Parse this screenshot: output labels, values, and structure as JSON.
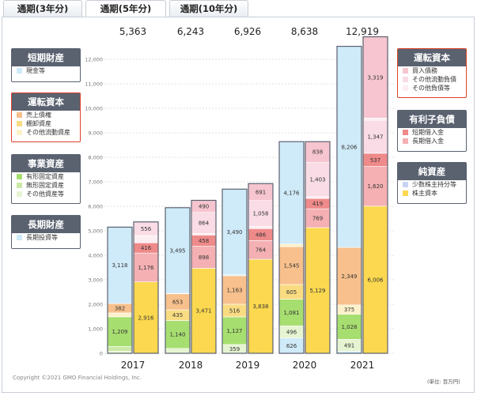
{
  "tabs": [
    {
      "label": "通期(3年分)",
      "active": false
    },
    {
      "label": "通期(5年分)",
      "active": true
    },
    {
      "label": "通期(10年分)",
      "active": false
    }
  ],
  "legend_left": [
    {
      "title": "短期財産",
      "border": "#5a6270",
      "items": [
        {
          "label": "現金等",
          "color": "#cfeaf8"
        }
      ]
    },
    {
      "title": "運転資本",
      "border": "#e0412a",
      "items": [
        {
          "label": "売上債権",
          "color": "#f7c08c"
        },
        {
          "label": "棚卸資産",
          "color": "#f9dc82"
        },
        {
          "label": "その他流動資産",
          "color": "#fdf1c9"
        }
      ]
    },
    {
      "title": "事業資産",
      "border": "#5a6270",
      "items": [
        {
          "label": "有形固定資産",
          "color": "#a7de70"
        },
        {
          "label": "無形固定資産",
          "color": "#cbe9a6"
        },
        {
          "label": "その他資産等",
          "color": "#e6f4d2"
        }
      ]
    },
    {
      "title": "長期財産",
      "border": "#5a6270",
      "items": [
        {
          "label": "長期投資等",
          "color": "#cfeaf8"
        }
      ]
    }
  ],
  "legend_right": [
    {
      "title": "運転資本",
      "border": "#e0412a",
      "items": [
        {
          "label": "買入債務",
          "color": "#f6c5cf"
        },
        {
          "label": "その他流動負債",
          "color": "#f9dce5"
        },
        {
          "label": "その他負債等",
          "color": "#fdeef2"
        }
      ]
    },
    {
      "title": "有利子負債",
      "border": "#5a6270",
      "items": [
        {
          "label": "短期借入金",
          "color": "#ef8a8a"
        },
        {
          "label": "長期借入金",
          "color": "#f4b0b3"
        }
      ]
    },
    {
      "title": "純資産",
      "border": "#5a6270",
      "items": [
        {
          "label": "少数株主持分等",
          "color": "#c9d3f3"
        },
        {
          "label": "株主資本",
          "color": "#fbd84f"
        }
      ]
    }
  ],
  "footer": {
    "copyright": "Copyright ©2021 GMO Financial Holdings, Inc.",
    "unit": "(単位: 百万円)"
  },
  "chart_data": {
    "type": "bar",
    "categories": [
      "2017",
      "2018",
      "2019",
      "2020",
      "2021"
    ],
    "totals": [
      "5,363",
      "6,243",
      "6,926",
      "8,638",
      "12,919"
    ],
    "ylim": [
      0,
      12000
    ],
    "yticks": [
      "0",
      "1,000",
      "2,000",
      "3,000",
      "4,000",
      "5,000",
      "6,000",
      "7,000",
      "8,000",
      "9,000",
      "10,000",
      "11,000",
      "12,000"
    ],
    "grid": true,
    "assets": [
      [
        {
          "name": "その他資産等",
          "value": 80,
          "label": "",
          "color": "#e6f4d2"
        },
        {
          "name": "無形固定資産",
          "value": 200,
          "label": "",
          "color": "#cbe9a6"
        },
        {
          "name": "有形固定資産",
          "value": 1209,
          "label": "1,209",
          "color": "#a7de70"
        },
        {
          "name": "その他流動資産",
          "value": 160,
          "label": "",
          "color": "#fdf1c9"
        },
        {
          "name": "売上債権",
          "value": 382,
          "label": "382",
          "color": "#f7c08c"
        },
        {
          "name": "現金等",
          "value": 3118,
          "label": "3,118",
          "color": "#cfeaf8"
        }
      ],
      [
        {
          "name": "その他資産等",
          "value": 200,
          "label": "",
          "color": "#e6f4d2"
        },
        {
          "name": "有形固定資産",
          "value": 1140,
          "label": "1,140",
          "color": "#a7de70"
        },
        {
          "name": "棚卸資産",
          "value": 435,
          "label": "435",
          "color": "#f9dc82"
        },
        {
          "name": "売上債権",
          "value": 653,
          "label": "653",
          "color": "#f7c08c"
        },
        {
          "name": "長期投資等",
          "value": 20,
          "label": "",
          "color": "#cfeaf8"
        },
        {
          "name": "現金等",
          "value": 3495,
          "label": "3,495",
          "color": "#cfeaf8"
        }
      ],
      [
        {
          "name": "その他資産等",
          "value": 359,
          "label": "359",
          "color": "#e6f4d2"
        },
        {
          "name": "有形固定資産",
          "value": 1127,
          "label": "1,127",
          "color": "#a7de70"
        },
        {
          "name": "棚卸資産",
          "value": 516,
          "label": "516",
          "color": "#f9dc82"
        },
        {
          "name": "売上債権",
          "value": 1163,
          "label": "1,163",
          "color": "#f7c08c"
        },
        {
          "name": "長期投資等",
          "value": 45,
          "label": "",
          "color": "#cfeaf8"
        },
        {
          "name": "現金等",
          "value": 3490,
          "label": "3,490",
          "color": "#cfeaf8"
        }
      ],
      [
        {
          "name": "長期投資等",
          "value": 626,
          "label": "626",
          "color": "#cfeaf8"
        },
        {
          "name": "その他資産等",
          "value": 496,
          "label": "496",
          "color": "#e6f4d2"
        },
        {
          "name": "有形固定資産",
          "value": 1081,
          "label": "1,081",
          "color": "#a7de70"
        },
        {
          "name": "棚卸資産",
          "value": 605,
          "label": "605",
          "color": "#f9dc82"
        },
        {
          "name": "売上債権",
          "value": 1545,
          "label": "1,545",
          "color": "#f7c08c"
        },
        {
          "name": "その他流動資産",
          "value": 109,
          "label": "",
          "color": "#fdf1c9"
        },
        {
          "name": "現金等",
          "value": 4176,
          "label": "4,176",
          "color": "#cfeaf8"
        }
      ],
      [
        {
          "name": "長期投資等",
          "value": 80,
          "label": "",
          "color": "#cfeaf8"
        },
        {
          "name": "その他資産等",
          "value": 491,
          "label": "491",
          "color": "#e6f4d2"
        },
        {
          "name": "有形固定資産",
          "value": 1028,
          "label": "1,028",
          "color": "#a7de70"
        },
        {
          "name": "その他流動資産",
          "value": 375,
          "label": "375",
          "color": "#fdf1c9"
        },
        {
          "name": "売上債権",
          "value": 2349,
          "label": "2,349",
          "color": "#f7c08c"
        },
        {
          "name": "現金等",
          "value": 8206,
          "label": "8,206",
          "color": "#cfeaf8"
        }
      ]
    ],
    "liabilities": [
      [
        {
          "name": "株主資本",
          "value": 2916,
          "label": "2,916",
          "color": "#fbd84f"
        },
        {
          "name": "長期借入金",
          "value": 1176,
          "label": "1,176",
          "color": "#f4b0b3"
        },
        {
          "name": "短期借入金",
          "value": 416,
          "label": "416",
          "color": "#ef8a8a"
        },
        {
          "name": "その他負債等",
          "value": 299,
          "label": "",
          "color": "#fdeef2"
        },
        {
          "name": "その他流動負債",
          "value": 556,
          "label": "556",
          "color": "#f9dce5"
        }
      ],
      [
        {
          "name": "株主資本",
          "value": 3471,
          "label": "3,471",
          "color": "#fbd84f"
        },
        {
          "name": "長期借入金",
          "value": 898,
          "label": "898",
          "color": "#f4b0b3"
        },
        {
          "name": "短期借入金",
          "value": 458,
          "label": "458",
          "color": "#ef8a8a"
        },
        {
          "name": "その他負債等",
          "value": 62,
          "label": "",
          "color": "#fdeef2"
        },
        {
          "name": "その他流動負債",
          "value": 864,
          "label": "864",
          "color": "#f9dce5"
        },
        {
          "name": "買入債務",
          "value": 490,
          "label": "490",
          "color": "#f6c5cf"
        }
      ],
      [
        {
          "name": "株主資本",
          "value": 3838,
          "label": "3,838",
          "color": "#fbd84f"
        },
        {
          "name": "長期借入金",
          "value": 764,
          "label": "764",
          "color": "#f4b0b3"
        },
        {
          "name": "短期借入金",
          "value": 486,
          "label": "486",
          "color": "#ef8a8a"
        },
        {
          "name": "その他負債等",
          "value": 89,
          "label": "",
          "color": "#fdeef2"
        },
        {
          "name": "その他流動負債",
          "value": 1058,
          "label": "1,058",
          "color": "#f9dce5"
        },
        {
          "name": "買入債務",
          "value": 691,
          "label": "691",
          "color": "#f6c5cf"
        }
      ],
      [
        {
          "name": "株主資本",
          "value": 5129,
          "label": "5,129",
          "color": "#fbd84f"
        },
        {
          "name": "長期借入金",
          "value": 769,
          "label": "769",
          "color": "#f4b0b3"
        },
        {
          "name": "短期借入金",
          "value": 419,
          "label": "419",
          "color": "#ef8a8a"
        },
        {
          "name": "その他負債等",
          "value": 80,
          "label": "",
          "color": "#fdeef2"
        },
        {
          "name": "その他流動負債",
          "value": 1403,
          "label": "1,403",
          "color": "#f9dce5"
        },
        {
          "name": "買入債務",
          "value": 838,
          "label": "838",
          "color": "#f6c5cf"
        }
      ],
      [
        {
          "name": "株主資本",
          "value": 6006,
          "label": "6,006",
          "color": "#fbd84f"
        },
        {
          "name": "長期借入金",
          "value": 1620,
          "label": "1,620",
          "color": "#f4b0b3"
        },
        {
          "name": "短期借入金",
          "value": 537,
          "label": "537",
          "color": "#ef8a8a"
        },
        {
          "name": "その他流動負債",
          "value": 1347,
          "label": "1,347",
          "color": "#f9dce5"
        },
        {
          "name": "その他負債等",
          "value": 90,
          "label": "",
          "color": "#fdeef2"
        },
        {
          "name": "買入債務",
          "value": 3319,
          "label": "3,319",
          "color": "#f6c5cf"
        }
      ]
    ]
  }
}
